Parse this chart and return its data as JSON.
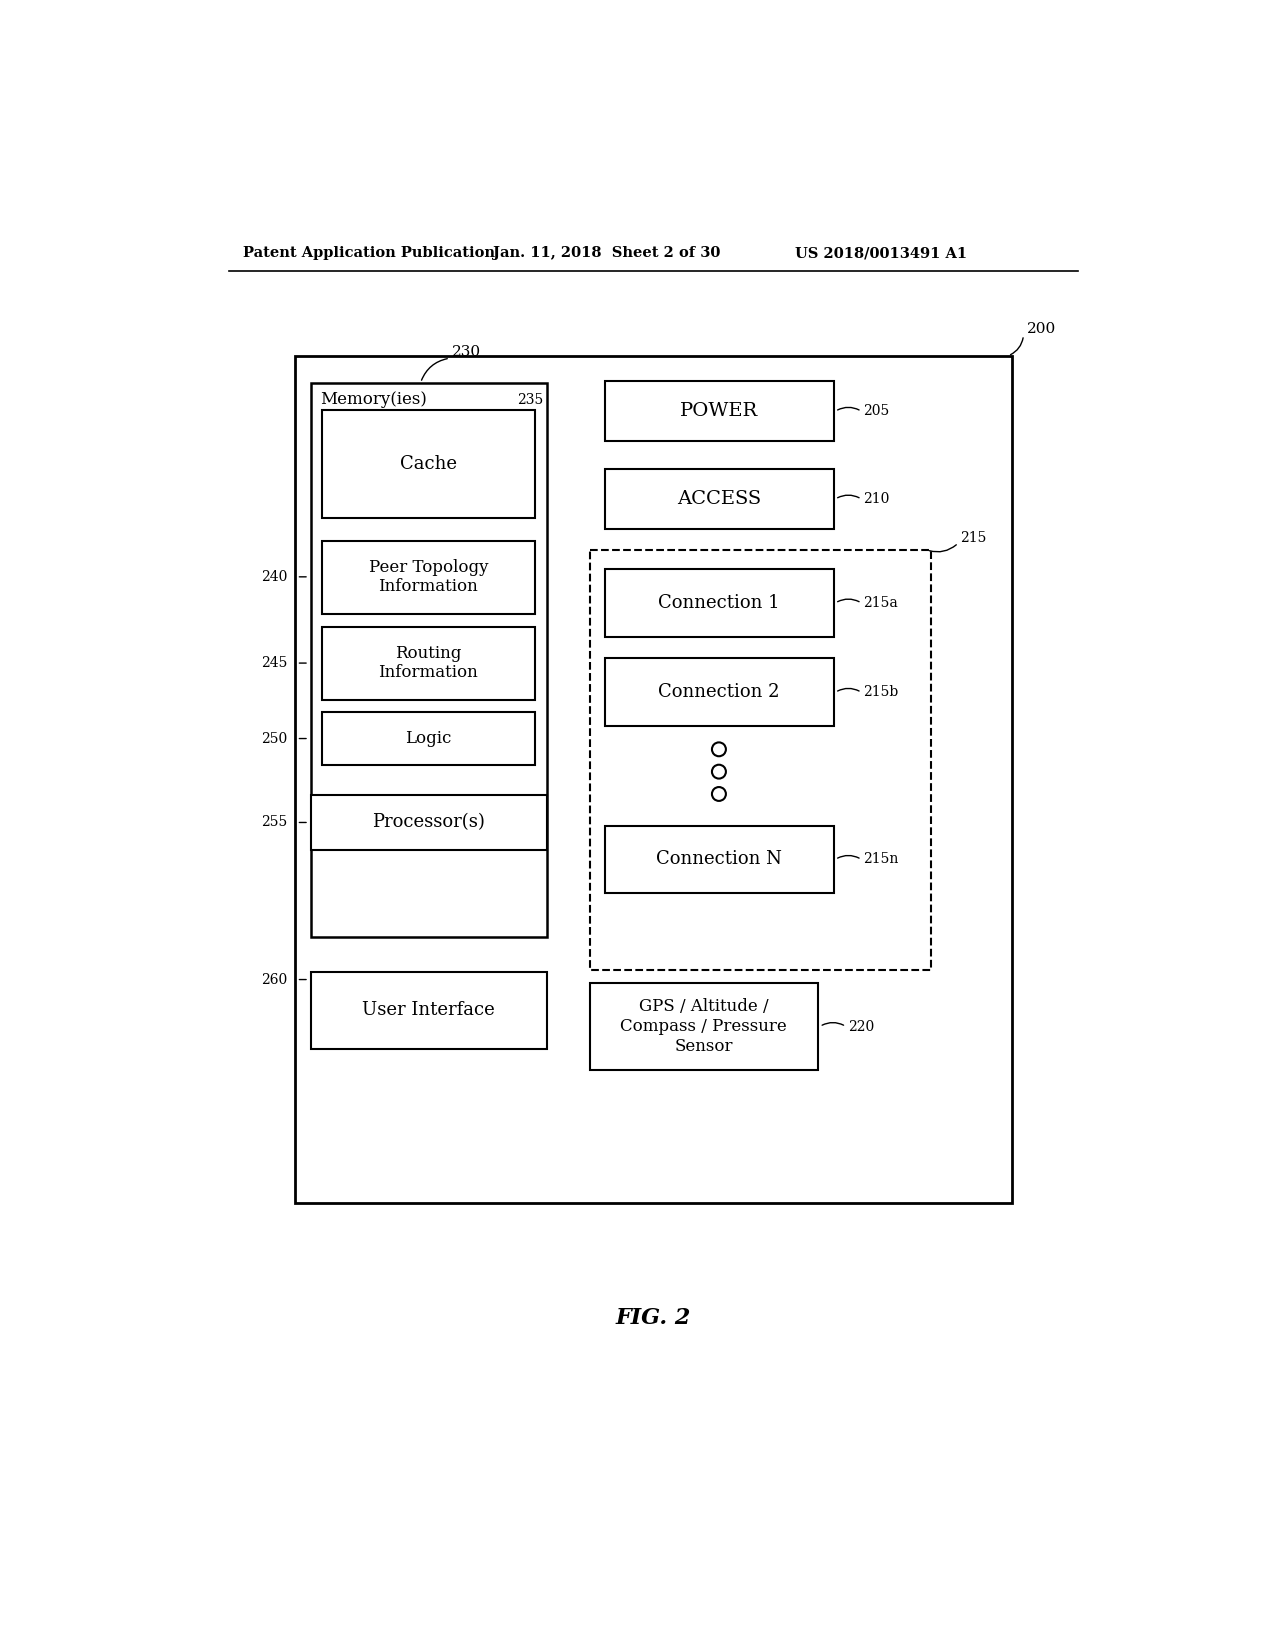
{
  "bg_color": "#ffffff",
  "header_left": "Patent Application Publication",
  "header_mid": "Jan. 11, 2018  Sheet 2 of 30",
  "header_right": "US 2018/0013491 A1",
  "fig_label": "FIG. 2",
  "outer_box_label": "200",
  "memory_box_label": "230",
  "memory_inner_label": "235",
  "memory_text": "Memory(ies)",
  "cache_text": "Cache",
  "peer_text": "Peer Topology\nInformation",
  "routing_text": "Routing\nInformation",
  "logic_text": "Logic",
  "processor_text": "Processor(s)",
  "ui_text": "User Interface",
  "power_text": "POWER",
  "access_text": "ACCESS",
  "connections_box_label": "215",
  "conn1_text": "Connection 1",
  "conn1_label": "215a",
  "conn2_text": "Connection 2",
  "conn2_label": "215b",
  "connN_text": "Connection N",
  "connN_label": "215n",
  "gps_text": "GPS / Altitude /\nCompass / Pressure\nSensor",
  "gps_label": "220",
  "power_label": "205",
  "access_label": "210",
  "processor_label": "255",
  "ui_label": "260",
  "peer_label": "240",
  "routing_label": "245",
  "logic_label": "250"
}
